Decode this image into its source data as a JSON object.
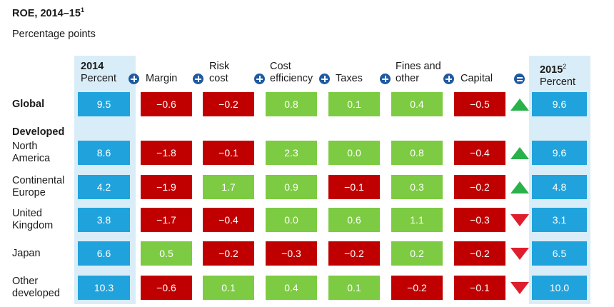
{
  "title": "ROE, 2014–15",
  "title_sup": "1",
  "subtitle": "Percentage points",
  "colors": {
    "blue": "#20a3dc",
    "red": "#c00000",
    "green": "#7dcb42",
    "highlight": "#d9edf8",
    "operator": "#1f5aa0",
    "arrow_up": "#2ab24a",
    "arrow_down": "#e01d2d"
  },
  "headers": {
    "y2014_line1": "2014",
    "y2014_line2": "Percent",
    "margin": "Margin",
    "risk_line1": "Risk",
    "risk_line2": "cost",
    "cost_line1": "Cost",
    "cost_line2": "efficiency",
    "taxes": "Taxes",
    "fines_line1": "Fines and",
    "fines_line2": "other",
    "capital": "Capital",
    "y2015_line1": "2015",
    "y2015_sup": "2",
    "y2015_line2": "Percent"
  },
  "section_label": "Developed",
  "chart_data": {
    "type": "table",
    "columns": [
      "2014 Percent",
      "Margin",
      "Risk cost",
      "Cost efficiency",
      "Taxes",
      "Fines and other",
      "Capital",
      "2015 Percent"
    ],
    "rows": [
      {
        "label": "Global",
        "values": [
          "9.5",
          "−0.6",
          "−0.2",
          "0.8",
          "0.1",
          "0.4",
          "−0.5",
          "9.6"
        ],
        "direction": "up"
      },
      {
        "label": "North\nAmerica",
        "values": [
          "8.6",
          "−1.8",
          "−0.1",
          "2.3",
          "0.0",
          "0.8",
          "−0.4",
          "9.6"
        ],
        "direction": "up"
      },
      {
        "label": "Continental\nEurope",
        "values": [
          "4.2",
          "−1.9",
          "1.7",
          "0.9",
          "−0.1",
          "0.3",
          "−0.2",
          "4.8"
        ],
        "direction": "up"
      },
      {
        "label": "United\nKingdom",
        "values": [
          "3.8",
          "−1.7",
          "−0.4",
          "0.0",
          "0.6",
          "1.1",
          "−0.3",
          "3.1"
        ],
        "direction": "down"
      },
      {
        "label": "Japan",
        "values": [
          "6.6",
          "0.5",
          "−0.2",
          "−0.3",
          "−0.2",
          "0.2",
          "−0.2",
          "6.5"
        ],
        "direction": "down"
      },
      {
        "label": "Other\ndeveloped",
        "values": [
          "10.3",
          "−0.6",
          "0.1",
          "0.4",
          "0.1",
          "−0.2",
          "−0.1",
          "10.0"
        ],
        "direction": "down"
      }
    ]
  }
}
